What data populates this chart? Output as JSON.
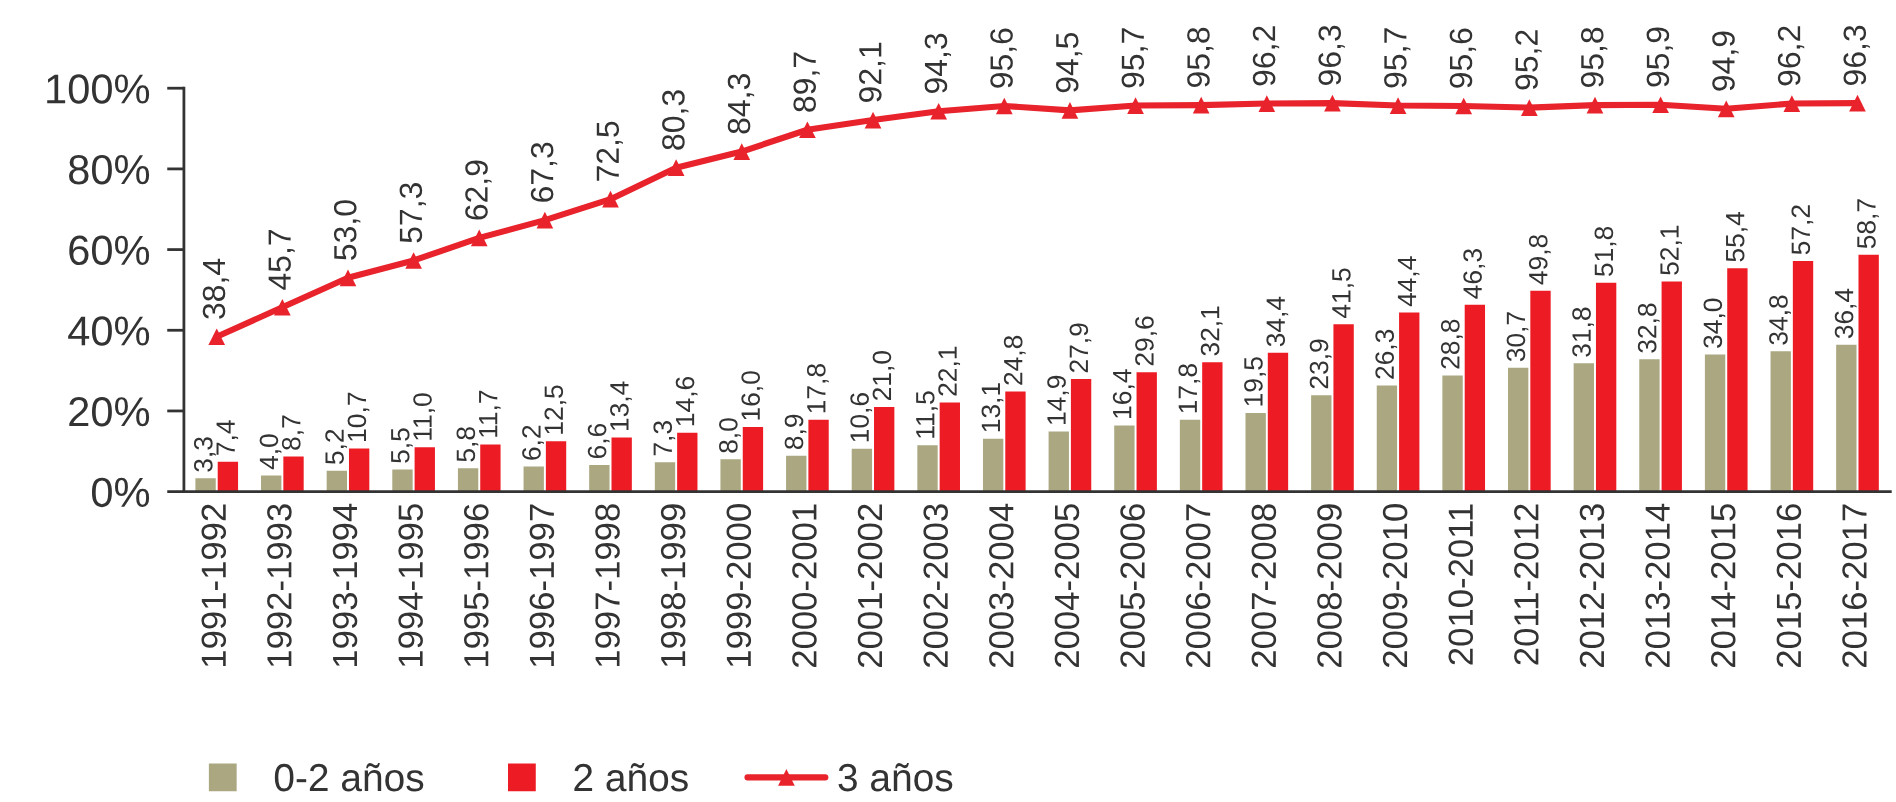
{
  "chart_data": {
    "type": "bar",
    "categories": [
      "1991-1992",
      "1992-1993",
      "1993-1994",
      "1994-1995",
      "1995-1996",
      "1996-1997",
      "1997-1998",
      "1998-1999",
      "1999-2000",
      "2000-2001",
      "2001-2002",
      "2002-2003",
      "2003-2004",
      "2004-2005",
      "2005-2006",
      "2006-2007",
      "2007-2008",
      "2008-2009",
      "2009-2010",
      "2010-2011",
      "2011-2012",
      "2012-2013",
      "2013-2014",
      "2014-2015",
      "2015-2016",
      "2016-2017"
    ],
    "series": [
      {
        "name": "0-2 años",
        "color": "#aaa781",
        "values": [
          3.3,
          4.0,
          5.2,
          5.5,
          5.8,
          6.2,
          6.6,
          7.3,
          8.0,
          8.9,
          10.6,
          11.5,
          13.1,
          14.9,
          16.4,
          17.8,
          19.5,
          23.9,
          26.3,
          28.8,
          30.7,
          31.8,
          32.8,
          34.0,
          34.8,
          36.4
        ],
        "value_labels": [
          "3,3",
          "4,0",
          "5,2",
          "5,5",
          "5,8",
          "6,2",
          "6,6",
          "7,3",
          "8,0",
          "8,9",
          "10,6",
          "11,5",
          "13,1",
          "14,9",
          "16,4",
          "17,8",
          "19,5",
          "23,9",
          "26,3",
          "28,8",
          "30,7",
          "31,8",
          "32,8",
          "34,0",
          "34,8",
          "36,4"
        ]
      },
      {
        "name": "2 años",
        "color": "#ed1c24",
        "values": [
          7.4,
          8.7,
          10.7,
          11.0,
          11.7,
          12.5,
          13.4,
          14.6,
          16.0,
          17.8,
          21.0,
          22.1,
          24.8,
          27.9,
          29.6,
          32.1,
          34.4,
          41.5,
          44.4,
          46.3,
          49.8,
          51.8,
          52.1,
          55.4,
          57.2,
          58.7
        ],
        "value_labels": [
          "7,4",
          "8,7",
          "10,7",
          "11,0",
          "11,7",
          "12,5",
          "13,4",
          "14,6",
          "16,0",
          "17,8",
          "21,0",
          "22,1",
          "24,8",
          "27,9",
          "29,6",
          "32,1",
          "34,4",
          "41,5",
          "44,4",
          "46,3",
          "49,8",
          "51,8",
          "52,1",
          "55,4",
          "57,2",
          "58,7"
        ]
      },
      {
        "name": "3 años",
        "type": "line",
        "color": "#e8232b",
        "marker": "triangle",
        "line_style": "solid",
        "values": [
          38.4,
          45.7,
          53.0,
          57.3,
          62.9,
          67.3,
          72.5,
          80.3,
          84.3,
          89.7,
          92.1,
          94.3,
          95.6,
          94.5,
          95.7,
          95.8,
          96.2,
          96.3,
          95.7,
          95.6,
          95.2,
          95.8,
          95.9,
          94.9,
          96.2,
          96.3
        ],
        "value_labels": [
          "38,4",
          "45,7",
          "53,0",
          "57,3",
          "62,9",
          "67,3",
          "72,5",
          "80,3",
          "84,3",
          "89,7",
          "92,1",
          "94,3",
          "95,6",
          "94,5",
          "95,7",
          "95,8",
          "96,2",
          "96,3",
          "95,7",
          "95,6",
          "95,2",
          "95,8",
          "95,9",
          "94,9",
          "96,2",
          "96,3"
        ]
      }
    ],
    "ylim": [
      0,
      100
    ],
    "yticks": [
      {
        "value": 0,
        "label": "0%"
      },
      {
        "value": 20,
        "label": "20%"
      },
      {
        "value": 40,
        "label": "40%"
      },
      {
        "value": 60,
        "label": "60%"
      },
      {
        "value": 80,
        "label": "80%"
      },
      {
        "value": 100,
        "label": "100%"
      }
    ],
    "grid": false,
    "legend": "bottom"
  }
}
